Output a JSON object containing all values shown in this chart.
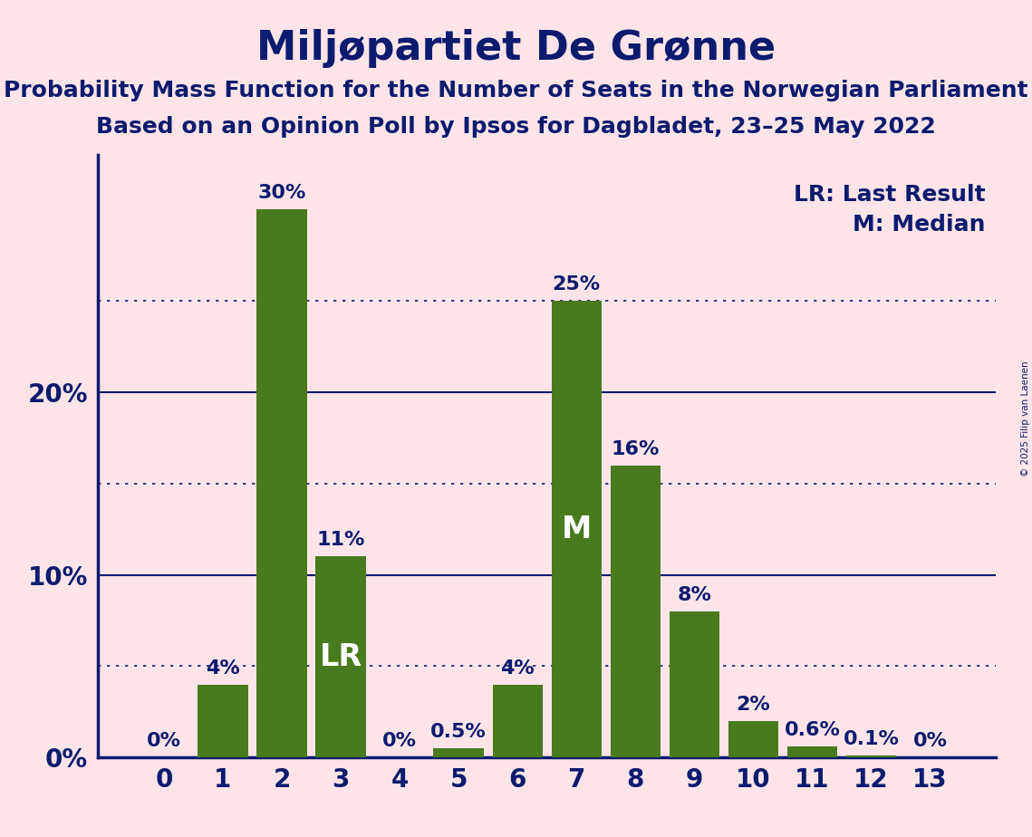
{
  "title": "Miljøpartiet De Grønne",
  "subtitle1": "Probability Mass Function for the Number of Seats in the Norwegian Parliament",
  "subtitle2": "Based on an Opinion Poll by Ipsos for Dagbladet, 23–25 May 2022",
  "copyright": "© 2025 Filip van Laenen",
  "legend_lr": "LR: Last Result",
  "legend_m": "M: Median",
  "categories": [
    0,
    1,
    2,
    3,
    4,
    5,
    6,
    7,
    8,
    9,
    10,
    11,
    12,
    13
  ],
  "values": [
    0.0,
    4.0,
    30.0,
    11.0,
    0.0,
    0.5,
    4.0,
    25.0,
    16.0,
    8.0,
    2.0,
    0.6,
    0.1,
    0.0
  ],
  "bar_labels": [
    "0%",
    "4%",
    "30%",
    "11%",
    "0%",
    "0.5%",
    "4%",
    "25%",
    "16%",
    "8%",
    "2%",
    "0.6%",
    "0.1%",
    "0%"
  ],
  "bar_color": "#4a7a1e",
  "lr_bar": 3,
  "median_bar": 7,
  "background_color": "#fce4e8",
  "text_color": "#0d1b6e",
  "title_fontsize": 32,
  "subtitle_fontsize": 18,
  "bar_label_fontsize": 16,
  "axis_label_fontsize": 20,
  "legend_fontsize": 18,
  "ylabel_values": [
    0,
    10,
    20
  ],
  "dotted_gridlines": [
    5,
    15,
    25
  ],
  "solid_gridlines": [
    10,
    20
  ],
  "ylim": [
    0,
    33
  ]
}
